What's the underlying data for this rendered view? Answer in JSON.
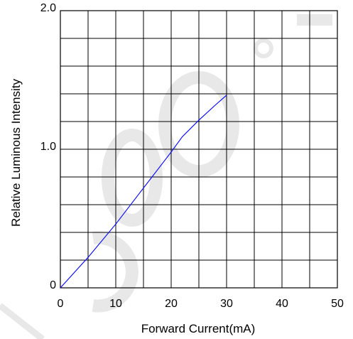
{
  "chart_data": {
    "type": "line",
    "xlabel": "Forward Current(mA)",
    "ylabel": "Relative Luminous Intensity",
    "xlim": [
      0,
      50
    ],
    "ylim": [
      0,
      2.0
    ],
    "x_ticks": [
      {
        "value": 0,
        "label": "0"
      },
      {
        "value": 10,
        "label": "10"
      },
      {
        "value": 20,
        "label": "20"
      },
      {
        "value": 30,
        "label": "30"
      },
      {
        "value": 40,
        "label": "40"
      },
      {
        "value": 50,
        "label": "50"
      }
    ],
    "y_ticks": [
      {
        "value": 0,
        "label": "0"
      },
      {
        "value": 1.0,
        "label": "1.0"
      },
      {
        "value": 2.0,
        "label": "2.0"
      }
    ],
    "x_grid_step": 5,
    "y_grid_step": 0.2,
    "grid": true,
    "series": [
      {
        "color": "#0000ff",
        "x": [
          0,
          5,
          10,
          15,
          20,
          22,
          25,
          28,
          30
        ],
        "y": [
          0,
          0.22,
          0.46,
          0.72,
          0.98,
          1.09,
          1.21,
          1.32,
          1.39
        ]
      }
    ]
  },
  "colors": {
    "grid": "#000000",
    "watermark": "#e5e5e5"
  }
}
